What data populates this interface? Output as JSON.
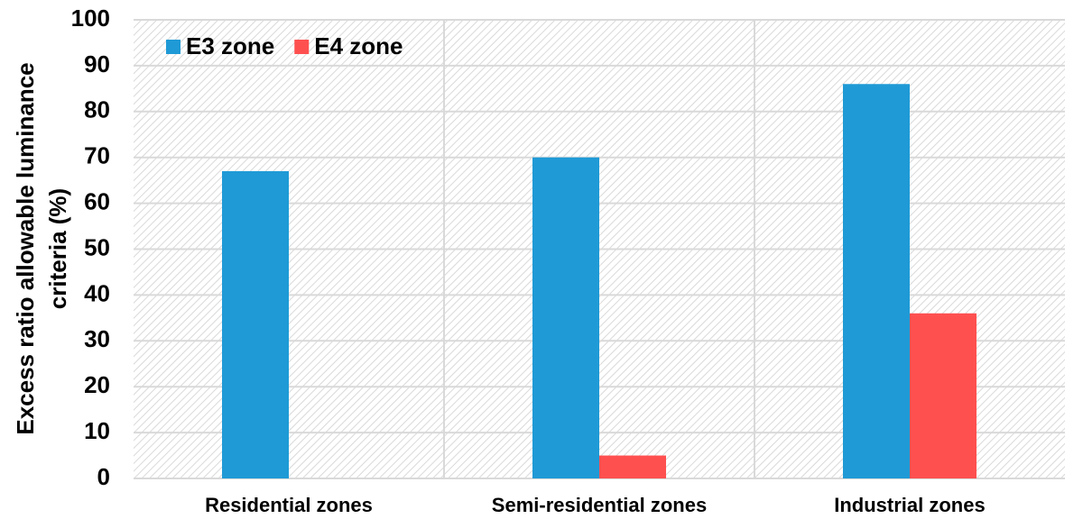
{
  "chart_data": {
    "type": "bar",
    "ylabel": [
      "Excess ratio allowable luminance",
      "criteria (%)"
    ],
    "categories": [
      "Residential zones",
      "Semi-residential zones",
      "Industrial zones"
    ],
    "series": [
      {
        "name": "E3 zone",
        "color": "#1f9ad6",
        "values": [
          67,
          70,
          86
        ]
      },
      {
        "name": "E4 zone",
        "color": "#ff5050",
        "values": [
          0,
          5,
          36
        ]
      }
    ],
    "ylim": [
      0,
      100
    ],
    "yticks": [
      0,
      10,
      20,
      30,
      40,
      50,
      60,
      70,
      80,
      90,
      100
    ],
    "grid": true,
    "legend": "top-left"
  }
}
